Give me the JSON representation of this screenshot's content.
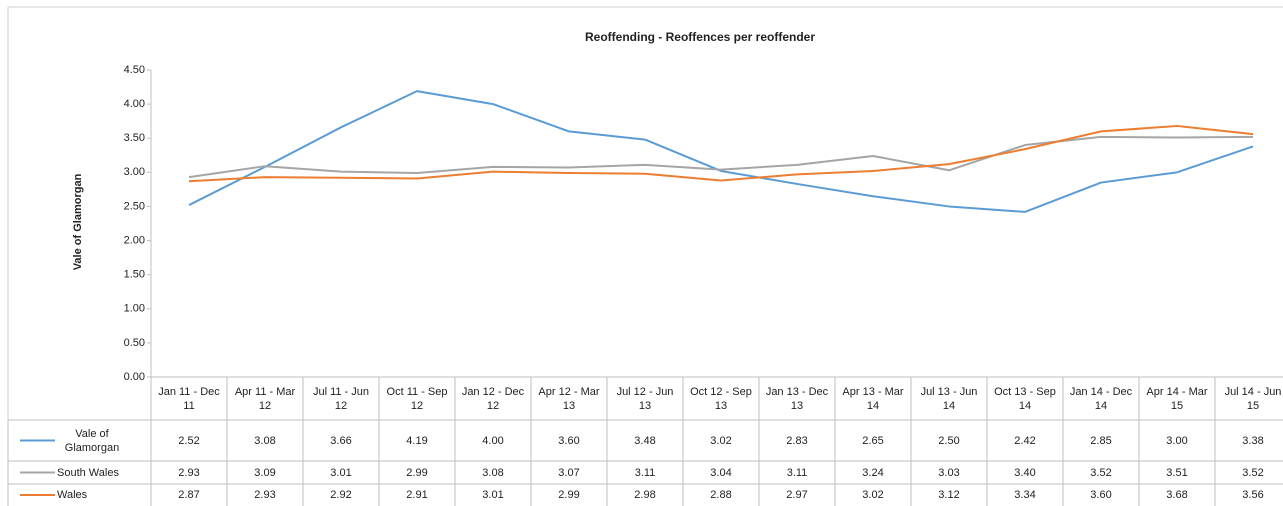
{
  "chart_data": {
    "type": "line",
    "title": "Reoffending - Reoffences per reoffender",
    "y_label": "Vale of Glamorgan",
    "categories": [
      "Jan 11 - Dec 11",
      "Apr 11 - Mar 12",
      "Jul 11 - Jun 12",
      "Oct 11 - Sep 12",
      "Jan 12 - Dec 12",
      "Apr 12 - Mar 13",
      "Jul 12 - Jun 13",
      "Oct 12 - Sep 13",
      "Jan 13 - Dec 13",
      "Apr 13 - Mar 14",
      "Jul 13 - Jun 14",
      "Oct 13 - Sep 14",
      "Jan 14 - Dec 14",
      "Apr 14 - Mar 15",
      "Jul 14 - Jun 15"
    ],
    "series": [
      {
        "name": "Vale of Glamorgan",
        "color": "#5b9bd5",
        "values": [
          2.52,
          3.08,
          3.66,
          4.19,
          4.0,
          3.6,
          3.48,
          3.02,
          2.83,
          2.65,
          2.5,
          2.42,
          2.85,
          3.0,
          3.38
        ],
        "value_labels": [
          "2.52",
          "3.08",
          "3.66",
          "4.19",
          "4.00",
          "3.60",
          "3.48",
          "3.02",
          "2.83",
          "2.65",
          "2.50",
          "2.42",
          "2.85",
          "3.00",
          "3.38"
        ]
      },
      {
        "name": "South Wales",
        "color": "#a5a5a5",
        "values": [
          2.93,
          3.09,
          3.01,
          2.99,
          3.08,
          3.07,
          3.11,
          3.04,
          3.11,
          3.24,
          3.03,
          3.4,
          3.52,
          3.51,
          3.52
        ],
        "value_labels": [
          "2.93",
          "3.09",
          "3.01",
          "2.99",
          "3.08",
          "3.07",
          "3.11",
          "3.04",
          "3.11",
          "3.24",
          "3.03",
          "3.40",
          "3.52",
          "3.51",
          "3.52"
        ]
      },
      {
        "name": "Wales",
        "color": "#ed7d31",
        "values": [
          2.87,
          2.93,
          2.92,
          2.91,
          3.01,
          2.99,
          2.98,
          2.88,
          2.97,
          3.02,
          3.12,
          3.34,
          3.6,
          3.68,
          3.56
        ],
        "value_labels": [
          "2.87",
          "2.93",
          "2.92",
          "2.91",
          "3.01",
          "2.99",
          "2.98",
          "2.88",
          "2.97",
          "3.02",
          "3.12",
          "3.34",
          "3.60",
          "3.68",
          "3.56"
        ]
      }
    ],
    "ylim": [
      0,
      4.5
    ],
    "yticks": [
      {
        "value": 0,
        "label": "0.00"
      },
      {
        "value": 0.5,
        "label": "0.50"
      },
      {
        "value": 1,
        "label": "1.00"
      },
      {
        "value": 1.5,
        "label": "1.50"
      },
      {
        "value": 2,
        "label": "2.00"
      },
      {
        "value": 2.5,
        "label": "2.50"
      },
      {
        "value": 3,
        "label": "3.00"
      },
      {
        "value": 3.5,
        "label": "3.50"
      },
      {
        "value": 4,
        "label": "4.00"
      },
      {
        "value": 4.5,
        "label": "4.50"
      }
    ],
    "grid": false
  }
}
